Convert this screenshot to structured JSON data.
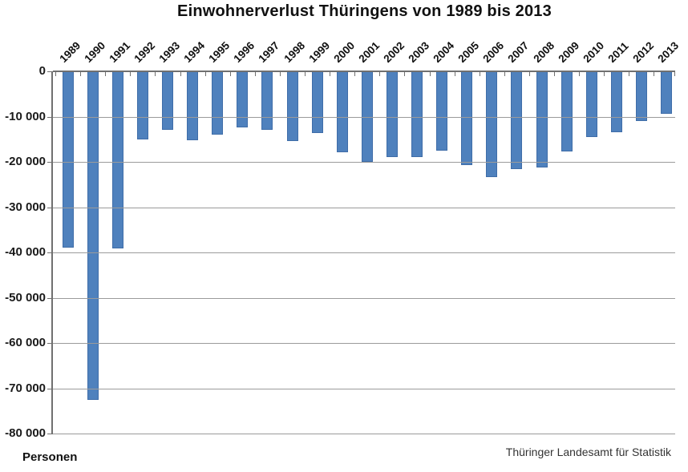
{
  "chart_data": {
    "type": "bar",
    "title": "Einwohnerverlust Thüringens von 1989 bis 2013",
    "unit_label": "Personen",
    "source": "Thüringer Landesamt für Statistik",
    "categories": [
      "1989",
      "1990",
      "1991",
      "1992",
      "1993",
      "1994",
      "1995",
      "1996",
      "1997",
      "1998",
      "1999",
      "2000",
      "2001",
      "2002",
      "2003",
      "2004",
      "2005",
      "2006",
      "2007",
      "2008",
      "2009",
      "2010",
      "2011",
      "2012",
      "2013"
    ],
    "values": [
      -39000,
      -72600,
      -39200,
      -15000,
      -12900,
      -15200,
      -14000,
      -12400,
      -13000,
      -15400,
      -13700,
      -17900,
      -20000,
      -19000,
      -18900,
      -17500,
      -20700,
      -23300,
      -21600,
      -21200,
      -17700,
      -14600,
      -13400,
      -10900,
      -9400
    ],
    "ylim": [
      -80000,
      0
    ],
    "ytick_step": 10000,
    "ytick_labels": [
      "0",
      "-10 000",
      "-20 000",
      "-30 000",
      "-40 000",
      "-50 000",
      "-60 000",
      "-70 000",
      "-80 000"
    ],
    "grid": true,
    "legend": "none",
    "bar_color": "#4f81bd",
    "bar_border_color": "#3f6da8",
    "gridline_color": "#9b9b9b",
    "axis_color": "#707070"
  }
}
